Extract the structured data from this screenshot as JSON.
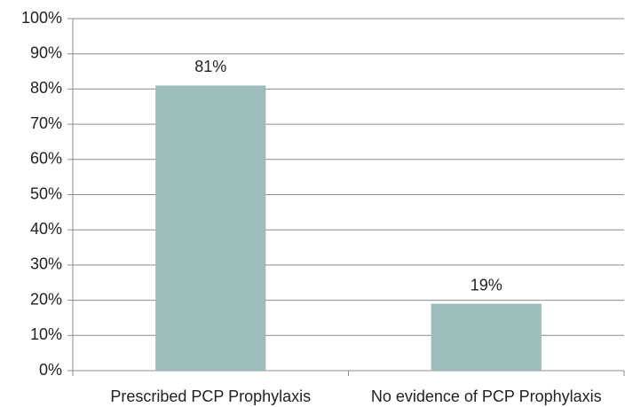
{
  "chart_data": {
    "type": "bar",
    "categories": [
      "Prescribed PCP Prophylaxis",
      "No evidence of PCP Prophylaxis"
    ],
    "values": [
      81,
      19
    ],
    "value_labels": [
      "81%",
      "19%"
    ],
    "color": "#9dbdbd",
    "ylim": [
      0,
      100
    ],
    "yticks": [
      {
        "value": 0,
        "label": "0%"
      },
      {
        "value": 10,
        "label": "10%"
      },
      {
        "value": 20,
        "label": "20%"
      },
      {
        "value": 30,
        "label": "30%"
      },
      {
        "value": 40,
        "label": "40%"
      },
      {
        "value": 50,
        "label": "50%"
      },
      {
        "value": 60,
        "label": "60%"
      },
      {
        "value": 70,
        "label": "70%"
      },
      {
        "value": 80,
        "label": "80%"
      },
      {
        "value": 90,
        "label": "90%"
      },
      {
        "value": 100,
        "label": "100%"
      }
    ],
    "grid": true
  }
}
